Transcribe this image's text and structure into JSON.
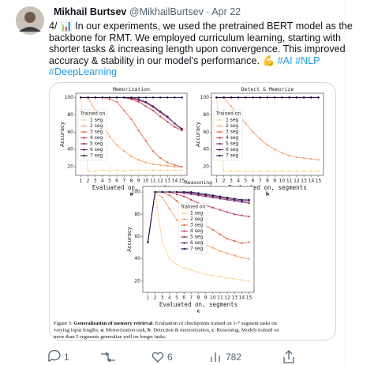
{
  "tweet": {
    "author": "Mikhail Burtsev",
    "handle": "@MikhailBurtsev",
    "separator": "·",
    "date": "Apr 22",
    "lines": [
      [
        {
          "text": "4/ 📊 In our experiments, we used the pretrained BERT model as the"
        }
      ],
      [
        {
          "text": "backbone for RMT. We employed curriculum learning, starting with"
        }
      ],
      [
        {
          "text": "shorter tasks & increasing length upon convergence. This improved"
        }
      ],
      [
        {
          "text": "accuracy & stability in our model's performance. 💪 "
        },
        {
          "text": "#AI",
          "link": true
        },
        {
          "text": " "
        },
        {
          "text": "#NLP",
          "link": true
        }
      ],
      [
        {
          "text": "#DeepLearning",
          "link": true
        }
      ]
    ],
    "actions": {
      "replies": "1",
      "likes": "6",
      "views": "782"
    }
  },
  "caption": [
    [
      {
        "text": "Figure 5: "
      },
      {
        "text": "Generalization of memory retrieval",
        "bold": true
      },
      {
        "text": ". Evaluation of checkpoints trained on 1-7 segment tasks on"
      }
    ],
    [
      {
        "text": "varying input lengths. "
      },
      {
        "text": "a",
        "bold": true
      },
      {
        "text": ": Memorization task, "
      },
      {
        "text": "b",
        "bold": true
      },
      {
        "text": ": Detection & memorization, "
      },
      {
        "text": "c",
        "bold": true
      },
      {
        "text": ": Reasoning. Models trained on"
      }
    ],
    [
      {
        "text": "more than 5 segments generalize well on longer tasks."
      }
    ]
  ],
  "chart_data": [
    {
      "type": "line",
      "title": "Memorization",
      "x_label": "Evaluated on, segments",
      "y_label": "Accuracy",
      "panel": "a",
      "legend_title": "Trained on",
      "legend": "left",
      "x": [
        1,
        2,
        3,
        4,
        5,
        6,
        7,
        8,
        9,
        10,
        11,
        12,
        13,
        14,
        15
      ],
      "xlim": [
        0.3,
        15.7
      ],
      "xticks": [
        1,
        2,
        3,
        4,
        5,
        6,
        7,
        8,
        9,
        10,
        11,
        12,
        13,
        14,
        15
      ],
      "ylim": [
        10,
        105
      ],
      "yticks": [
        20,
        40,
        60,
        80,
        100
      ],
      "series": [
        {
          "name": "1 seg",
          "color": "#fbd6a0",
          "values": [
            100,
            15,
            15,
            16,
            15,
            16,
            15,
            16,
            16,
            16,
            16,
            16,
            16,
            16,
            16
          ]
        },
        {
          "name": "2 seg",
          "color": "#f6a46b",
          "values": [
            100,
            100,
            85,
            70,
            55,
            45,
            38,
            32,
            28,
            25,
            23,
            22,
            21,
            20,
            20
          ]
        },
        {
          "name": "3 seg",
          "color": "#e96b55",
          "values": [
            100,
            100,
            100,
            100,
            98,
            95,
            85,
            75,
            62,
            50,
            38,
            30,
            25,
            22,
            20
          ]
        },
        {
          "name": "4 seg",
          "color": "#c73e5c",
          "values": [
            100,
            100,
            100,
            100,
            100,
            100,
            100,
            98,
            95,
            90,
            85,
            78,
            72,
            66,
            62
          ]
        },
        {
          "name": "5 seg",
          "color": "#8e2d6a",
          "values": [
            100,
            100,
            100,
            100,
            100,
            100,
            100,
            99,
            97,
            94,
            89,
            83,
            77,
            70,
            64
          ]
        },
        {
          "name": "6 seg",
          "color": "#5a1e6b",
          "values": [
            100,
            100,
            100,
            100,
            100,
            100,
            100,
            100,
            98,
            95,
            90,
            84,
            78,
            70,
            63
          ]
        },
        {
          "name": "7 seg",
          "color": "#1e0c45",
          "values": [
            100,
            100,
            100,
            100,
            100,
            100,
            100,
            100,
            100,
            100,
            100,
            100,
            100,
            100,
            100
          ]
        }
      ]
    },
    {
      "type": "line",
      "title": "Detect & Memorize",
      "x_label": "Evaluated on, segments",
      "y_label": "Accuracy",
      "panel": "b",
      "legend_title": "Trained on",
      "legend": "left",
      "x": [
        1,
        2,
        3,
        4,
        5,
        6,
        7,
        8,
        9,
        10,
        11,
        12,
        13,
        14,
        15
      ],
      "xlim": [
        0.3,
        15.7
      ],
      "xticks": [
        1,
        2,
        3,
        4,
        5,
        6,
        7,
        8,
        9,
        10,
        11,
        12,
        13,
        14,
        15
      ],
      "ylim": [
        10,
        105
      ],
      "yticks": [
        20,
        40,
        60,
        80,
        100
      ],
      "series": [
        {
          "name": "1 seg",
          "color": "#fbd6a0",
          "values": [
            100,
            15,
            15,
            15,
            15,
            15,
            15,
            15,
            15,
            15,
            15,
            15,
            15,
            15,
            15
          ]
        },
        {
          "name": "2 seg",
          "color": "#f6a46b",
          "values": [
            100,
            100,
            90,
            80,
            70,
            60,
            52,
            45,
            40,
            36,
            33,
            31,
            30,
            29,
            28
          ]
        },
        {
          "name": "3 seg",
          "color": "#e96b55",
          "values": [
            100,
            100,
            100,
            100,
            100,
            100,
            100,
            100,
            100,
            100,
            100,
            100,
            100,
            100,
            100
          ]
        },
        {
          "name": "4 seg",
          "color": "#c73e5c",
          "values": [
            100,
            100,
            100,
            100,
            100,
            100,
            100,
            100,
            100,
            100,
            100,
            100,
            100,
            100,
            100
          ]
        },
        {
          "name": "5 seg",
          "color": "#8e2d6a",
          "values": [
            100,
            100,
            100,
            100,
            100,
            100,
            100,
            100,
            100,
            100,
            100,
            100,
            100,
            100,
            100
          ]
        },
        {
          "name": "6 seg",
          "color": "#5a1e6b",
          "values": [
            100,
            100,
            100,
            100,
            100,
            100,
            100,
            100,
            100,
            100,
            100,
            100,
            100,
            100,
            100
          ]
        },
        {
          "name": "7 seg",
          "color": "#1e0c45",
          "values": [
            100,
            100,
            100,
            100,
            100,
            100,
            100,
            100,
            100,
            100,
            100,
            100,
            100,
            100,
            100
          ]
        }
      ]
    },
    {
      "type": "line",
      "title": "Reasoning",
      "x_label": "Evaluated on, segments",
      "y_label": "Accuracy",
      "panel": "c",
      "legend_title": "Trained on",
      "legend": "center",
      "x": [
        1,
        2,
        3,
        4,
        5,
        6,
        7,
        8,
        9,
        10,
        11,
        12,
        13,
        14,
        15
      ],
      "xlim": [
        0.3,
        15.7
      ],
      "xticks": [
        1,
        2,
        3,
        4,
        5,
        6,
        7,
        8,
        9,
        10,
        11,
        12,
        13,
        14,
        15
      ],
      "ylim": [
        10,
        105
      ],
      "yticks": [
        20,
        40,
        60,
        80,
        100
      ],
      "series": [
        {
          "name": "1 seg",
          "color": "#fbd6a0",
          "values": [
            55,
            100,
            55,
            40,
            35,
            32,
            30,
            28,
            26,
            25,
            24,
            23,
            22,
            21,
            20
          ]
        },
        {
          "name": "2 seg",
          "color": "#f6a46b",
          "values": [
            55,
            100,
            95,
            85,
            75,
            68,
            62,
            57,
            53,
            50,
            47,
            45,
            43,
            41,
            40
          ]
        },
        {
          "name": "3 seg",
          "color": "#e96b55",
          "values": [
            55,
            100,
            100,
            97,
            92,
            86,
            80,
            75,
            70,
            66,
            62,
            58,
            56,
            54,
            55
          ]
        },
        {
          "name": "4 seg",
          "color": "#c73e5c",
          "values": [
            55,
            100,
            100,
            100,
            98,
            96,
            93,
            90,
            88,
            86,
            84,
            82,
            80,
            79,
            78
          ]
        },
        {
          "name": "5 seg",
          "color": "#8e2d6a",
          "values": [
            55,
            100,
            100,
            100,
            100,
            99,
            98,
            97,
            96,
            95,
            94,
            93,
            92,
            91,
            90
          ]
        },
        {
          "name": "6 seg",
          "color": "#5a1e6b",
          "values": [
            55,
            100,
            100,
            100,
            100,
            100,
            99,
            98,
            97,
            96,
            95,
            94,
            93,
            92,
            92
          ]
        },
        {
          "name": "7 seg",
          "color": "#1e0c45",
          "values": [
            55,
            100,
            100,
            100,
            100,
            100,
            100,
            99,
            98,
            97,
            96,
            95,
            94,
            93,
            93
          ]
        }
      ]
    }
  ]
}
